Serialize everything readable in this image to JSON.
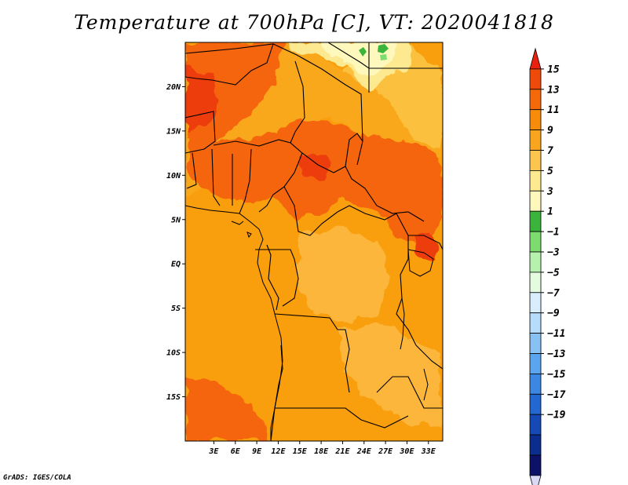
{
  "title": "Temperature at 700hPa [C], VT: 2020041818",
  "credit": "GrADS: IGES/COLA",
  "map": {
    "lon_range": [
      -1,
      35
    ],
    "lat_range": [
      -20,
      25
    ],
    "lon_ticks": [
      {
        "value": 3,
        "label": "3E"
      },
      {
        "value": 6,
        "label": "6E"
      },
      {
        "value": 9,
        "label": "9E"
      },
      {
        "value": 12,
        "label": "12E"
      },
      {
        "value": 15,
        "label": "15E"
      },
      {
        "value": 18,
        "label": "18E"
      },
      {
        "value": 21,
        "label": "21E"
      },
      {
        "value": 24,
        "label": "24E"
      },
      {
        "value": 27,
        "label": "27E"
      },
      {
        "value": 30,
        "label": "30E"
      },
      {
        "value": 33,
        "label": "33E"
      }
    ],
    "lat_ticks": [
      {
        "value": 20,
        "label": "20N"
      },
      {
        "value": 15,
        "label": "15N"
      },
      {
        "value": 10,
        "label": "10N"
      },
      {
        "value": 5,
        "label": "5N"
      },
      {
        "value": 0,
        "label": "EQ"
      },
      {
        "value": -5,
        "label": "5S"
      },
      {
        "value": -10,
        "label": "10S"
      },
      {
        "value": -15,
        "label": "15S"
      }
    ]
  },
  "colorbar": {
    "levels": [
      "15",
      "13",
      "11",
      "9",
      "7",
      "5",
      "3",
      "1",
      "-1",
      "-3",
      "-5",
      "-7",
      "-9",
      "-11",
      "-13",
      "-15",
      "-17",
      "-19"
    ],
    "colors": [
      "#e8220e",
      "#f04a0a",
      "#f5690a",
      "#f78b0a",
      "#f9a61f",
      "#fbc54e",
      "#fde98f",
      "#fff8bd",
      "#3ab43a",
      "#7ddc6e",
      "#b6f2ad",
      "#e4fbe0",
      "#d8eefc",
      "#b5dcfa",
      "#88c2f5",
      "#5aa5ee",
      "#3b87e2",
      "#2268d0",
      "#154ab6",
      "#0a2d8e",
      "#0d1167",
      "#d9d9f5"
    ]
  }
}
